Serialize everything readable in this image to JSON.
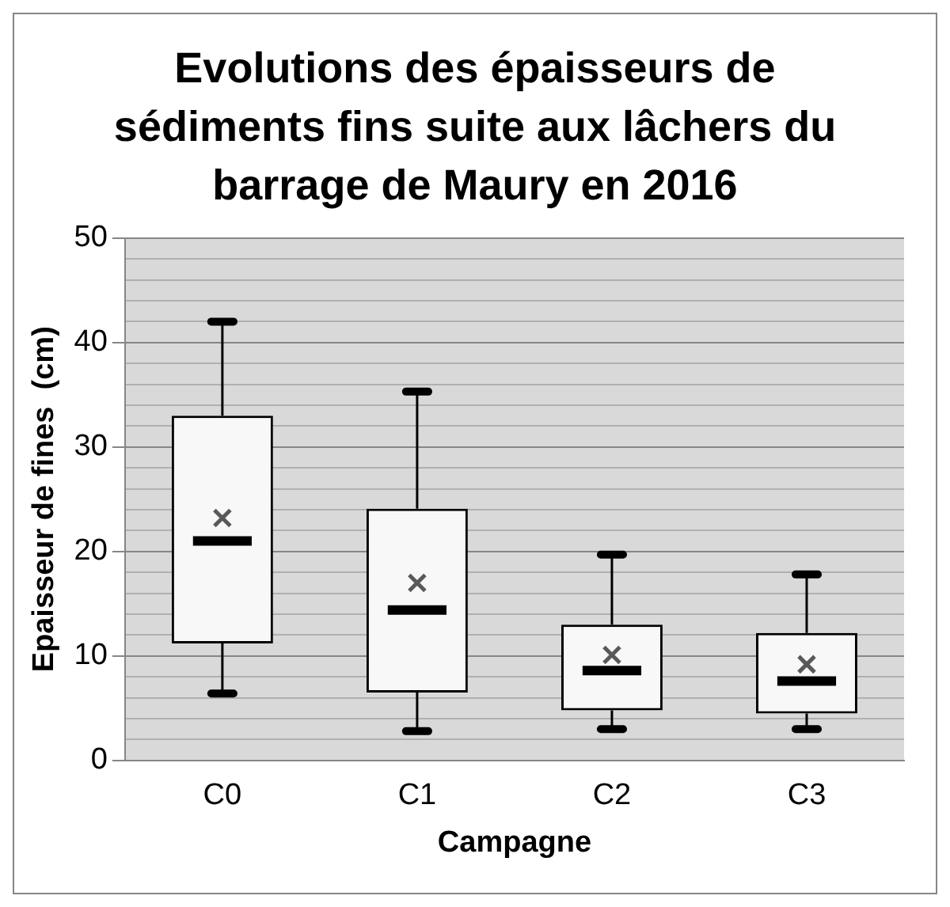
{
  "chart_data": {
    "type": "box",
    "title": "Evolutions des épaisseurs de sédiments fins suite aux lâchers du barrage de Maury en 2016",
    "xlabel": "Campagne",
    "ylabel": "Epaisseur de fines  (cm)",
    "categories": [
      "C0",
      "C1",
      "C2",
      "C3"
    ],
    "boxes": [
      {
        "low": 6.4,
        "q1": 11.2,
        "median": 21,
        "q3": 33,
        "high": 42,
        "mean": 23.2
      },
      {
        "low": 2.8,
        "q1": 6.5,
        "median": 14.4,
        "q3": 24.1,
        "high": 35.3,
        "mean": 17
      },
      {
        "low": 3,
        "q1": 4.8,
        "median": 8.6,
        "q3": 13,
        "high": 19.7,
        "mean": 10.1
      },
      {
        "low": 3,
        "q1": 4.5,
        "median": 7.6,
        "q3": 12.2,
        "high": 17.8,
        "mean": 9.2
      }
    ],
    "ylim": [
      0,
      50
    ],
    "yticks": [
      0,
      {
        "value": 2,
        "label": null
      },
      {
        "value": 4,
        "label": null
      },
      {
        "value": 6,
        "label": null
      },
      {
        "value": 8,
        "label": null
      },
      10,
      {
        "value": 12,
        "label": null
      },
      {
        "value": 14,
        "label": null
      },
      {
        "value": 16,
        "label": null
      },
      {
        "value": 18,
        "label": null
      },
      20,
      {
        "value": 22,
        "label": null
      },
      {
        "value": 24,
        "label": null
      },
      {
        "value": 26,
        "label": null
      },
      {
        "value": 28,
        "label": null
      },
      30,
      {
        "value": 32,
        "label": null
      },
      {
        "value": 34,
        "label": null
      },
      {
        "value": 36,
        "label": null
      },
      {
        "value": 38,
        "label": null
      },
      40,
      {
        "value": 42,
        "label": null
      },
      {
        "value": 44,
        "label": null
      },
      {
        "value": 46,
        "label": null
      },
      {
        "value": 48,
        "label": null
      },
      50
    ],
    "grid": "y",
    "legend": false,
    "marker": "cross"
  }
}
